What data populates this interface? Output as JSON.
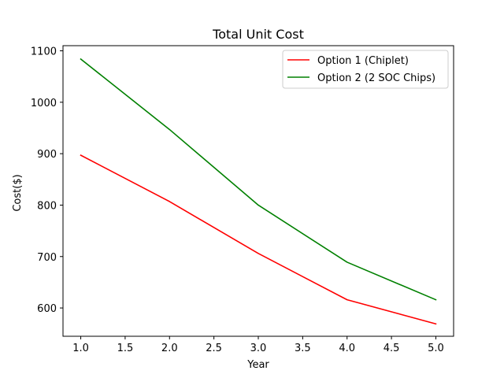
{
  "chart_data": {
    "type": "line",
    "title": "Total Unit Cost",
    "xlabel": "Year",
    "ylabel": "Cost($)",
    "xlim": [
      0.8,
      5.2
    ],
    "ylim": [
      545,
      1110
    ],
    "xticks": [
      1.0,
      1.5,
      2.0,
      2.5,
      3.0,
      3.5,
      4.0,
      4.5,
      5.0
    ],
    "xtick_labels": [
      "1.0",
      "1.5",
      "2.0",
      "2.5",
      "3.0",
      "3.5",
      "4.0",
      "4.5",
      "5.0"
    ],
    "yticks": [
      600,
      700,
      800,
      900,
      1000,
      1100
    ],
    "ytick_labels": [
      "600",
      "700",
      "800",
      "900",
      "1000",
      "1100"
    ],
    "grid": false,
    "legend_position": "top-right",
    "x": [
      1,
      2,
      3,
      4,
      5
    ],
    "series": [
      {
        "name": "Option 1 (Chiplet)",
        "color": "#ff0000",
        "values": [
          897,
          807,
          706,
          616,
          569
        ]
      },
      {
        "name": "Option 2 (2 SOC Chips)",
        "color": "#008000",
        "values": [
          1084,
          947,
          800,
          689,
          616
        ]
      }
    ]
  }
}
